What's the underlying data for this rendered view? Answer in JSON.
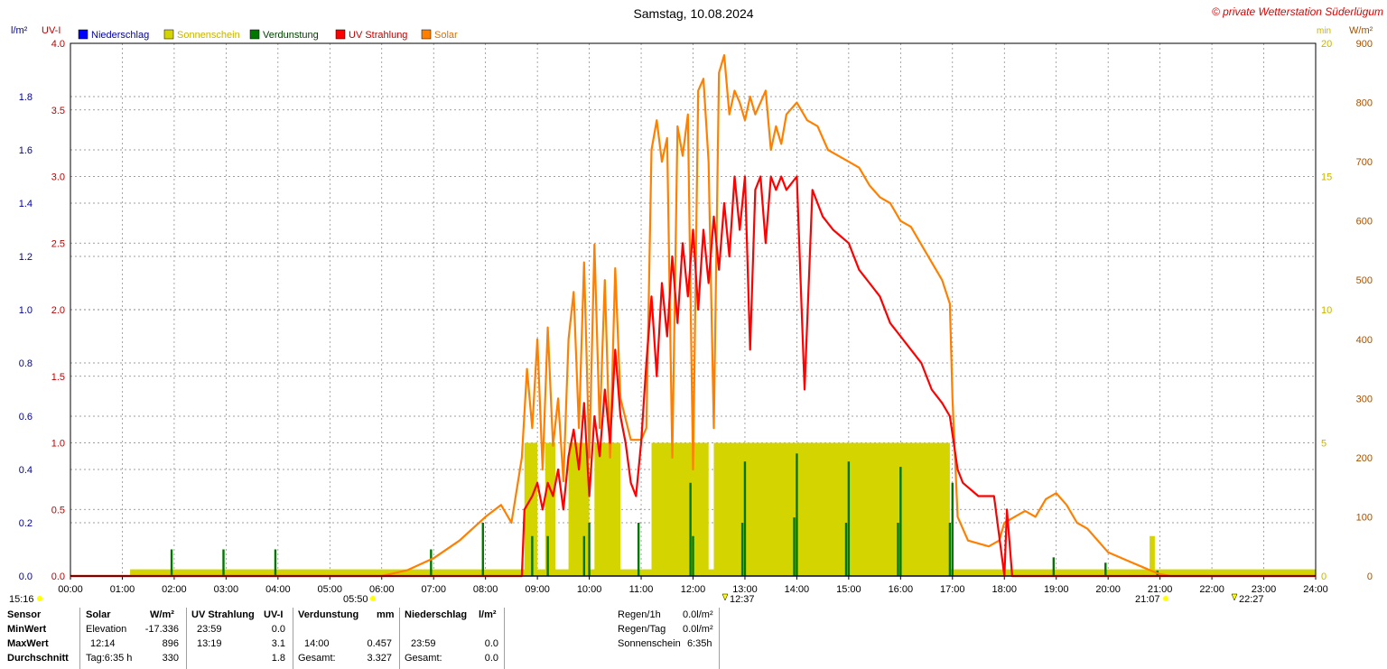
{
  "header": {
    "title": "Samstag, 10.08.2024",
    "watermark": "© private Wetterstation Süderlügum"
  },
  "colors": {
    "niederschlag": "#0000ff",
    "sonnenschein": "#d4d400",
    "sonnenschein_text": "#c8b400",
    "verdunstung": "#007800",
    "uv": "#ff0000",
    "solar": "#ff8000",
    "grid": "#808080"
  },
  "chart_data": {
    "type": "line",
    "title": "Samstag, 10.08.2024",
    "legend": [
      "Niederschlag",
      "Sonnenschein",
      "Verdunstung",
      "UV Strahlung",
      "Solar"
    ],
    "legend_placement": "top",
    "grid": true,
    "x_ticks": [
      "00:00",
      "01:00",
      "02:00",
      "03:00",
      "04:00",
      "05:00",
      "06:00",
      "07:00",
      "08:00",
      "09:00",
      "10:00",
      "11:00",
      "12:00",
      "13:00",
      "14:00",
      "15:00",
      "16:00",
      "17:00",
      "18:00",
      "19:00",
      "20:00",
      "21:00",
      "22:00",
      "23:00",
      "24:00"
    ],
    "x_range_hours": [
      0,
      24
    ],
    "axes": {
      "rain": {
        "unit": "l/m²",
        "range": [
          0,
          2.0
        ],
        "ticks": [
          "0.0",
          "0.2",
          "0.4",
          "0.6",
          "0.8",
          "1.0",
          "1.2",
          "1.4",
          "1.6",
          "1.8"
        ]
      },
      "uv": {
        "unit": "UV-I",
        "range": [
          0,
          4.0
        ],
        "ticks": [
          "0.0",
          "0.5",
          "1.0",
          "1.5",
          "2.0",
          "2.5",
          "3.0",
          "3.5",
          "4.0"
        ]
      },
      "sun": {
        "unit": "min",
        "range": [
          0,
          20
        ],
        "ticks": [
          "0",
          "5",
          "10",
          "15",
          "20"
        ]
      },
      "solar": {
        "unit": "W/m²",
        "range": [
          0,
          900
        ],
        "ticks": [
          "0",
          "100",
          "200",
          "300",
          "400",
          "500",
          "600",
          "700",
          "800",
          "900"
        ]
      }
    },
    "solar": [
      [
        0,
        0
      ],
      [
        6,
        0
      ],
      [
        6.5,
        10
      ],
      [
        7,
        30
      ],
      [
        7.5,
        60
      ],
      [
        8,
        100
      ],
      [
        8.3,
        120
      ],
      [
        8.5,
        90
      ],
      [
        8.7,
        200
      ],
      [
        8.8,
        350
      ],
      [
        8.9,
        250
      ],
      [
        9,
        400
      ],
      [
        9.1,
        180
      ],
      [
        9.2,
        420
      ],
      [
        9.3,
        220
      ],
      [
        9.4,
        300
      ],
      [
        9.5,
        160
      ],
      [
        9.6,
        400
      ],
      [
        9.7,
        480
      ],
      [
        9.8,
        250
      ],
      [
        9.9,
        530
      ],
      [
        10,
        200
      ],
      [
        10.1,
        560
      ],
      [
        10.2,
        250
      ],
      [
        10.3,
        500
      ],
      [
        10.4,
        200
      ],
      [
        10.5,
        520
      ],
      [
        10.6,
        300
      ],
      [
        10.8,
        230
      ],
      [
        11,
        230
      ],
      [
        11.1,
        250
      ],
      [
        11.2,
        720
      ],
      [
        11.3,
        770
      ],
      [
        11.4,
        700
      ],
      [
        11.5,
        740
      ],
      [
        11.6,
        200
      ],
      [
        11.7,
        760
      ],
      [
        11.8,
        710
      ],
      [
        11.9,
        780
      ],
      [
        12,
        180
      ],
      [
        12.1,
        820
      ],
      [
        12.2,
        840
      ],
      [
        12.3,
        700
      ],
      [
        12.4,
        250
      ],
      [
        12.5,
        850
      ],
      [
        12.6,
        880
      ],
      [
        12.7,
        780
      ],
      [
        12.8,
        820
      ],
      [
        12.9,
        800
      ],
      [
        13,
        770
      ],
      [
        13.1,
        810
      ],
      [
        13.2,
        780
      ],
      [
        13.3,
        800
      ],
      [
        13.4,
        820
      ],
      [
        13.5,
        720
      ],
      [
        13.6,
        760
      ],
      [
        13.7,
        730
      ],
      [
        13.8,
        780
      ],
      [
        14,
        800
      ],
      [
        14.2,
        770
      ],
      [
        14.4,
        760
      ],
      [
        14.6,
        720
      ],
      [
        14.8,
        710
      ],
      [
        15,
        700
      ],
      [
        15.2,
        690
      ],
      [
        15.4,
        660
      ],
      [
        15.6,
        640
      ],
      [
        15.8,
        630
      ],
      [
        16,
        600
      ],
      [
        16.2,
        590
      ],
      [
        16.4,
        560
      ],
      [
        16.6,
        530
      ],
      [
        16.8,
        500
      ],
      [
        16.95,
        460
      ],
      [
        17,
        300
      ],
      [
        17.1,
        100
      ],
      [
        17.3,
        60
      ],
      [
        17.5,
        55
      ],
      [
        17.7,
        50
      ],
      [
        17.9,
        60
      ],
      [
        18,
        90
      ],
      [
        18.2,
        100
      ],
      [
        18.4,
        110
      ],
      [
        18.6,
        100
      ],
      [
        18.8,
        130
      ],
      [
        19,
        140
      ],
      [
        19.2,
        120
      ],
      [
        19.4,
        90
      ],
      [
        19.6,
        80
      ],
      [
        19.8,
        60
      ],
      [
        20,
        40
      ],
      [
        20.4,
        25
      ],
      [
        20.8,
        10
      ],
      [
        21,
        3
      ],
      [
        21.2,
        0
      ],
      [
        24,
        0
      ]
    ],
    "uv": [
      [
        0,
        0
      ],
      [
        8.7,
        0
      ],
      [
        8.75,
        0.5
      ],
      [
        8.9,
        0.6
      ],
      [
        9.0,
        0.7
      ],
      [
        9.1,
        0.5
      ],
      [
        9.2,
        0.7
      ],
      [
        9.3,
        0.6
      ],
      [
        9.4,
        0.8
      ],
      [
        9.5,
        0.5
      ],
      [
        9.6,
        0.9
      ],
      [
        9.7,
        1.1
      ],
      [
        9.8,
        0.8
      ],
      [
        9.9,
        1.3
      ],
      [
        10,
        0.6
      ],
      [
        10.1,
        1.2
      ],
      [
        10.2,
        0.9
      ],
      [
        10.3,
        1.4
      ],
      [
        10.4,
        1.0
      ],
      [
        10.5,
        1.7
      ],
      [
        10.6,
        1.2
      ],
      [
        10.7,
        1.0
      ],
      [
        10.8,
        0.7
      ],
      [
        10.9,
        0.6
      ],
      [
        11,
        1.0
      ],
      [
        11.1,
        1.6
      ],
      [
        11.2,
        2.1
      ],
      [
        11.3,
        1.5
      ],
      [
        11.4,
        2.2
      ],
      [
        11.5,
        1.8
      ],
      [
        11.6,
        2.4
      ],
      [
        11.7,
        1.9
      ],
      [
        11.8,
        2.5
      ],
      [
        11.9,
        2.1
      ],
      [
        12,
        2.6
      ],
      [
        12.1,
        2.0
      ],
      [
        12.2,
        2.6
      ],
      [
        12.3,
        2.2
      ],
      [
        12.4,
        2.7
      ],
      [
        12.5,
        2.3
      ],
      [
        12.6,
        2.8
      ],
      [
        12.7,
        2.4
      ],
      [
        12.8,
        3.0
      ],
      [
        12.9,
        2.6
      ],
      [
        13.0,
        3.0
      ],
      [
        13.1,
        1.7
      ],
      [
        13.2,
        2.9
      ],
      [
        13.3,
        3.0
      ],
      [
        13.4,
        2.5
      ],
      [
        13.5,
        3.0
      ],
      [
        13.6,
        2.9
      ],
      [
        13.7,
        3.0
      ],
      [
        13.8,
        2.9
      ],
      [
        14,
        3.0
      ],
      [
        14.15,
        1.4
      ],
      [
        14.3,
        2.9
      ],
      [
        14.5,
        2.7
      ],
      [
        14.7,
        2.6
      ],
      [
        15,
        2.5
      ],
      [
        15.2,
        2.3
      ],
      [
        15.4,
        2.2
      ],
      [
        15.6,
        2.1
      ],
      [
        15.8,
        1.9
      ],
      [
        16,
        1.8
      ],
      [
        16.2,
        1.7
      ],
      [
        16.4,
        1.6
      ],
      [
        16.6,
        1.4
      ],
      [
        16.8,
        1.3
      ],
      [
        16.95,
        1.2
      ],
      [
        17.1,
        0.8
      ],
      [
        17.2,
        0.7
      ],
      [
        17.5,
        0.6
      ],
      [
        17.8,
        0.6
      ],
      [
        18,
        0
      ],
      [
        18.05,
        0.5
      ],
      [
        18.15,
        0
      ],
      [
        24,
        0
      ]
    ],
    "sunshine_intervals": [
      [
        1.15,
        24,
        0.25
      ],
      [
        8.75,
        9.0,
        5
      ],
      [
        9.15,
        9.35,
        5
      ],
      [
        9.6,
        10.0,
        5
      ],
      [
        10.1,
        10.6,
        5
      ],
      [
        11.2,
        12.3,
        5
      ],
      [
        12.4,
        16.95,
        5
      ],
      [
        20.8,
        20.9,
        1.5
      ]
    ],
    "evaporation": [
      [
        1.95,
        0.1
      ],
      [
        2.95,
        0.1
      ],
      [
        3.95,
        0.1
      ],
      [
        6.95,
        0.1
      ],
      [
        7.95,
        0.2
      ],
      [
        8.9,
        0.15
      ],
      [
        9.2,
        0.15
      ],
      [
        9.9,
        0.15
      ],
      [
        10,
        0.2
      ],
      [
        10.95,
        0.2
      ],
      [
        11.95,
        0.35
      ],
      [
        12,
        0.15
      ],
      [
        12.95,
        0.2
      ],
      [
        13,
        0.43
      ],
      [
        13.95,
        0.22
      ],
      [
        14,
        0.46
      ],
      [
        14.95,
        0.2
      ],
      [
        15,
        0.43
      ],
      [
        15.95,
        0.2
      ],
      [
        16,
        0.41
      ],
      [
        16.95,
        0.2
      ],
      [
        17,
        0.35
      ],
      [
        18.95,
        0.07
      ],
      [
        19.95,
        0.05
      ],
      [
        20.95,
        0.02
      ]
    ]
  },
  "labels": {
    "unit_rain": "l/m²",
    "unit_uv": "UV-I",
    "unit_sun": "min",
    "unit_solar": "W/m²",
    "legend_niederschlag": "Niederschlag",
    "legend_sonnenschein": "Sonnenschein",
    "legend_verdunstung": "Verdunstung",
    "legend_uv": "UV Strahlung",
    "legend_solar": "Solar",
    "moonrise": "15:16",
    "sunrise": "05:50",
    "culmination": "12:37",
    "sunset": "21:07",
    "moonset": "22:27"
  },
  "stats": {
    "sensor": "Sensor",
    "minwert": "MinWert",
    "maxwert": "MaxWert",
    "durchschnitt": "Durchschnitt",
    "solar_head": "Solar",
    "solar_unit": "W/m²",
    "solar_min_label": "Elevation",
    "solar_min": "-17.336",
    "solar_max_time": "12:14",
    "solar_max": "896",
    "solar_avg_label": "Tag:6:35 h",
    "solar_avg": "330",
    "uv_head": "UV Strahlung",
    "uv_unit": "UV-I",
    "uv_min_time": "23:59",
    "uv_min": "0.0",
    "uv_max_time": "13:19",
    "uv_max": "3.1",
    "uv_avg": "1.8",
    "verd_head": "Verdunstung",
    "verd_unit": "mm",
    "verd_max_time": "14:00",
    "verd_max": "0.457",
    "verd_total_label": "Gesamt:",
    "verd_total": "3.327",
    "rain_head": "Niederschlag",
    "rain_unit": "l/m²",
    "rain_max_time": "23:59",
    "rain_max": "0.0",
    "rain_total_label": "Gesamt:",
    "rain_total": "0.0",
    "regen_1h_label": "Regen/1h",
    "regen_1h": "0.0l/m²",
    "regen_tag_label": "Regen/Tag",
    "regen_tag": "0.0l/m²",
    "sonnenschein_label": "Sonnenschein",
    "sonnenschein": "6:35h"
  }
}
